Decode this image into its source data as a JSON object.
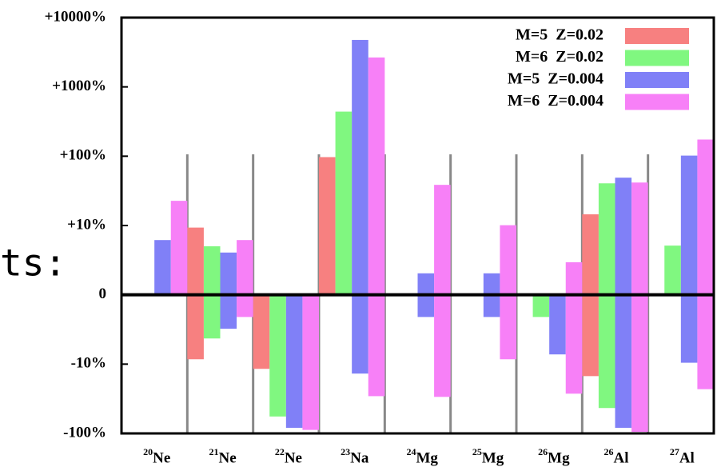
{
  "overlay_text": "ts:",
  "chart_data": {
    "type": "range-bar",
    "yscale": "symlog",
    "linthresh": 10,
    "ylim": [
      -100,
      10000
    ],
    "yticks": [
      {
        "value": -100,
        "label": "-100%"
      },
      {
        "value": -10,
        "label": "-10%"
      },
      0,
      {
        "value": 10,
        "label": "+10%"
      },
      {
        "value": 100,
        "label": "+100%"
      },
      {
        "value": 1000,
        "label": "+1000%"
      },
      {
        "value": 10000,
        "label": "+10000%"
      }
    ],
    "category_mass": [
      "20",
      "21",
      "22",
      "23",
      "24",
      "25",
      "26",
      "26",
      "27"
    ],
    "categories": [
      "Ne",
      "Ne",
      "Ne",
      "Na",
      "Mg",
      "Mg",
      "Mg",
      "Al",
      "Al"
    ],
    "series": [
      {
        "name": "M=5  Z=0.02",
        "color": "#f78080",
        "high": [
          null,
          9.7,
          0,
          97,
          null,
          null,
          null,
          14.5,
          null
        ],
        "low": [
          null,
          -9.3,
          -11.7,
          0,
          null,
          null,
          null,
          -14.9,
          null
        ]
      },
      {
        "name": "M=6  Z=0.02",
        "color": "#80f780",
        "high": [
          null,
          7.0,
          0,
          440,
          null,
          null,
          0,
          40.6,
          7.1
        ],
        "low": [
          null,
          -6.3,
          -57,
          0,
          null,
          null,
          -3.2,
          -43,
          0
        ]
      },
      {
        "name": "M=5  Z=0.004",
        "color": "#8080f7",
        "high": [
          7.9,
          6.1,
          0,
          4760,
          3.1,
          3.1,
          0,
          49,
          102
        ],
        "low": [
          0,
          -4.9,
          -83,
          -13.7,
          -3.2,
          -3.2,
          -8.6,
          -83,
          -9.8
        ]
      },
      {
        "name": "M=6  Z=0.004",
        "color": "#f780f7",
        "high": [
          22.7,
          7.9,
          0,
          2660,
          38.6,
          10.1,
          4.7,
          41.7,
          174
        ],
        "low": [
          0,
          -3.2,
          -89,
          -29,
          -29.7,
          -9.3,
          -26.7,
          -95,
          -23
        ]
      }
    ]
  }
}
